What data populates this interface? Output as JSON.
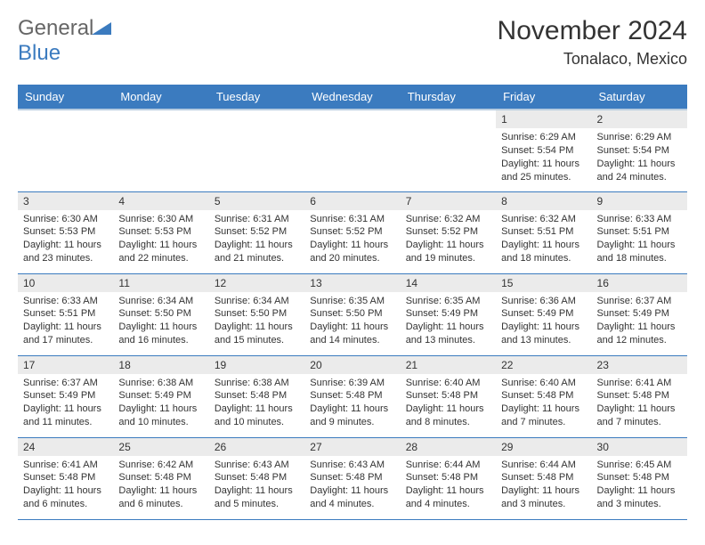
{
  "logo": {
    "word1": "General",
    "word2": "Blue"
  },
  "title": "November 2024",
  "location": "Tonalaco, Mexico",
  "colors": {
    "header_bg": "#3b7bbf",
    "header_text": "#ffffff",
    "daynum_bg": "#ebebeb",
    "row_border": "#3b7bbf",
    "logo_gray": "#666666",
    "logo_blue": "#3b7bbf"
  },
  "dayHeaders": [
    "Sunday",
    "Monday",
    "Tuesday",
    "Wednesday",
    "Thursday",
    "Friday",
    "Saturday"
  ],
  "weeks": [
    [
      null,
      null,
      null,
      null,
      null,
      {
        "n": "1",
        "sunrise": "Sunrise: 6:29 AM",
        "sunset": "Sunset: 5:54 PM",
        "daylight": "Daylight: 11 hours and 25 minutes."
      },
      {
        "n": "2",
        "sunrise": "Sunrise: 6:29 AM",
        "sunset": "Sunset: 5:54 PM",
        "daylight": "Daylight: 11 hours and 24 minutes."
      }
    ],
    [
      {
        "n": "3",
        "sunrise": "Sunrise: 6:30 AM",
        "sunset": "Sunset: 5:53 PM",
        "daylight": "Daylight: 11 hours and 23 minutes."
      },
      {
        "n": "4",
        "sunrise": "Sunrise: 6:30 AM",
        "sunset": "Sunset: 5:53 PM",
        "daylight": "Daylight: 11 hours and 22 minutes."
      },
      {
        "n": "5",
        "sunrise": "Sunrise: 6:31 AM",
        "sunset": "Sunset: 5:52 PM",
        "daylight": "Daylight: 11 hours and 21 minutes."
      },
      {
        "n": "6",
        "sunrise": "Sunrise: 6:31 AM",
        "sunset": "Sunset: 5:52 PM",
        "daylight": "Daylight: 11 hours and 20 minutes."
      },
      {
        "n": "7",
        "sunrise": "Sunrise: 6:32 AM",
        "sunset": "Sunset: 5:52 PM",
        "daylight": "Daylight: 11 hours and 19 minutes."
      },
      {
        "n": "8",
        "sunrise": "Sunrise: 6:32 AM",
        "sunset": "Sunset: 5:51 PM",
        "daylight": "Daylight: 11 hours and 18 minutes."
      },
      {
        "n": "9",
        "sunrise": "Sunrise: 6:33 AM",
        "sunset": "Sunset: 5:51 PM",
        "daylight": "Daylight: 11 hours and 18 minutes."
      }
    ],
    [
      {
        "n": "10",
        "sunrise": "Sunrise: 6:33 AM",
        "sunset": "Sunset: 5:51 PM",
        "daylight": "Daylight: 11 hours and 17 minutes."
      },
      {
        "n": "11",
        "sunrise": "Sunrise: 6:34 AM",
        "sunset": "Sunset: 5:50 PM",
        "daylight": "Daylight: 11 hours and 16 minutes."
      },
      {
        "n": "12",
        "sunrise": "Sunrise: 6:34 AM",
        "sunset": "Sunset: 5:50 PM",
        "daylight": "Daylight: 11 hours and 15 minutes."
      },
      {
        "n": "13",
        "sunrise": "Sunrise: 6:35 AM",
        "sunset": "Sunset: 5:50 PM",
        "daylight": "Daylight: 11 hours and 14 minutes."
      },
      {
        "n": "14",
        "sunrise": "Sunrise: 6:35 AM",
        "sunset": "Sunset: 5:49 PM",
        "daylight": "Daylight: 11 hours and 13 minutes."
      },
      {
        "n": "15",
        "sunrise": "Sunrise: 6:36 AM",
        "sunset": "Sunset: 5:49 PM",
        "daylight": "Daylight: 11 hours and 13 minutes."
      },
      {
        "n": "16",
        "sunrise": "Sunrise: 6:37 AM",
        "sunset": "Sunset: 5:49 PM",
        "daylight": "Daylight: 11 hours and 12 minutes."
      }
    ],
    [
      {
        "n": "17",
        "sunrise": "Sunrise: 6:37 AM",
        "sunset": "Sunset: 5:49 PM",
        "daylight": "Daylight: 11 hours and 11 minutes."
      },
      {
        "n": "18",
        "sunrise": "Sunrise: 6:38 AM",
        "sunset": "Sunset: 5:49 PM",
        "daylight": "Daylight: 11 hours and 10 minutes."
      },
      {
        "n": "19",
        "sunrise": "Sunrise: 6:38 AM",
        "sunset": "Sunset: 5:48 PM",
        "daylight": "Daylight: 11 hours and 10 minutes."
      },
      {
        "n": "20",
        "sunrise": "Sunrise: 6:39 AM",
        "sunset": "Sunset: 5:48 PM",
        "daylight": "Daylight: 11 hours and 9 minutes."
      },
      {
        "n": "21",
        "sunrise": "Sunrise: 6:40 AM",
        "sunset": "Sunset: 5:48 PM",
        "daylight": "Daylight: 11 hours and 8 minutes."
      },
      {
        "n": "22",
        "sunrise": "Sunrise: 6:40 AM",
        "sunset": "Sunset: 5:48 PM",
        "daylight": "Daylight: 11 hours and 7 minutes."
      },
      {
        "n": "23",
        "sunrise": "Sunrise: 6:41 AM",
        "sunset": "Sunset: 5:48 PM",
        "daylight": "Daylight: 11 hours and 7 minutes."
      }
    ],
    [
      {
        "n": "24",
        "sunrise": "Sunrise: 6:41 AM",
        "sunset": "Sunset: 5:48 PM",
        "daylight": "Daylight: 11 hours and 6 minutes."
      },
      {
        "n": "25",
        "sunrise": "Sunrise: 6:42 AM",
        "sunset": "Sunset: 5:48 PM",
        "daylight": "Daylight: 11 hours and 6 minutes."
      },
      {
        "n": "26",
        "sunrise": "Sunrise: 6:43 AM",
        "sunset": "Sunset: 5:48 PM",
        "daylight": "Daylight: 11 hours and 5 minutes."
      },
      {
        "n": "27",
        "sunrise": "Sunrise: 6:43 AM",
        "sunset": "Sunset: 5:48 PM",
        "daylight": "Daylight: 11 hours and 4 minutes."
      },
      {
        "n": "28",
        "sunrise": "Sunrise: 6:44 AM",
        "sunset": "Sunset: 5:48 PM",
        "daylight": "Daylight: 11 hours and 4 minutes."
      },
      {
        "n": "29",
        "sunrise": "Sunrise: 6:44 AM",
        "sunset": "Sunset: 5:48 PM",
        "daylight": "Daylight: 11 hours and 3 minutes."
      },
      {
        "n": "30",
        "sunrise": "Sunrise: 6:45 AM",
        "sunset": "Sunset: 5:48 PM",
        "daylight": "Daylight: 11 hours and 3 minutes."
      }
    ]
  ]
}
